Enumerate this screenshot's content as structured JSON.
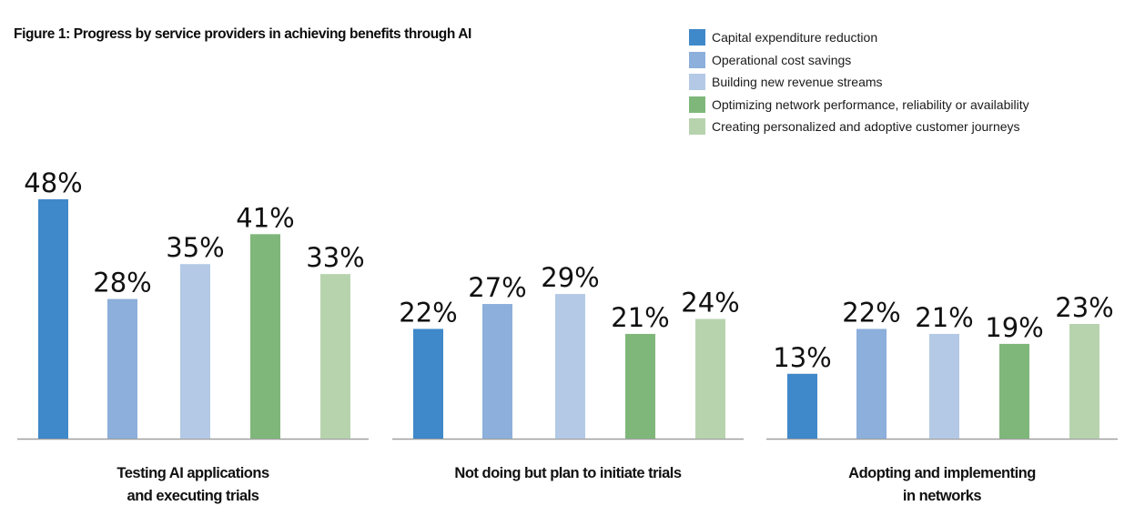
{
  "chart_data": {
    "type": "bar",
    "title": "Figure 1: Progress by service providers in achieving benefits through AI",
    "xlabel": "",
    "ylabel": "",
    "ylim": [
      0,
      50
    ],
    "grid": false,
    "legend_position": "top-right",
    "value_suffix": "%",
    "categories": [
      "Testing AI applications\nand executing trials",
      "Not doing but plan to initiate trials",
      "Adopting and implementing\nin networks"
    ],
    "series": [
      {
        "name": "Capital expenditure reduction",
        "color": "#3f88c9",
        "values": [
          48,
          22,
          13
        ]
      },
      {
        "name": "Operational cost savings",
        "color": "#8cafdb",
        "values": [
          28,
          27,
          22
        ]
      },
      {
        "name": "Building new revenue streams",
        "color": "#b3c9e6",
        "values": [
          35,
          29,
          21
        ]
      },
      {
        "name": "Optimizing network performance, reliability or availability",
        "color": "#7fb77a",
        "values": [
          41,
          21,
          19
        ]
      },
      {
        "name": "Creating personalized and adoptive customer journeys",
        "color": "#b7d3ae",
        "values": [
          33,
          24,
          23
        ]
      }
    ]
  }
}
